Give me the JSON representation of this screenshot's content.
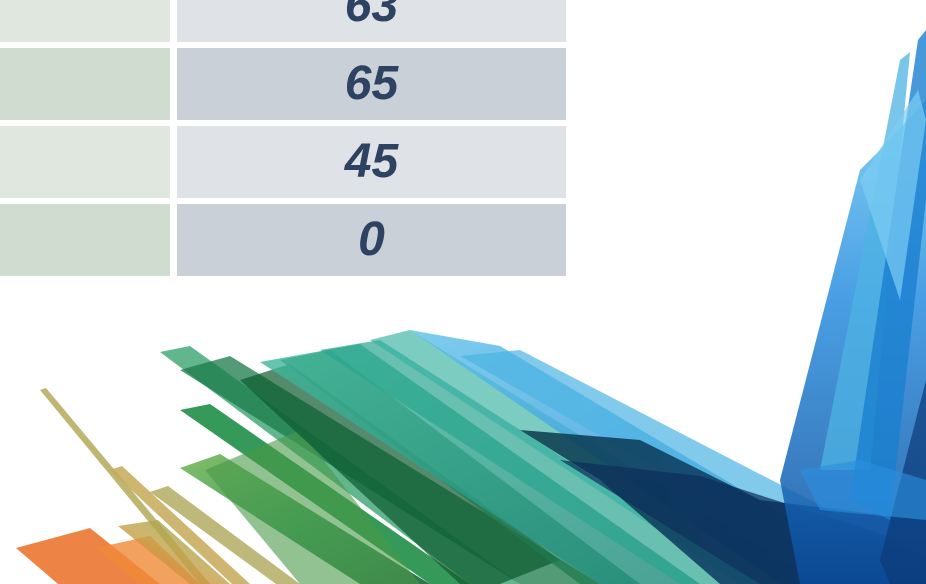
{
  "table": {
    "rows": [
      {
        "value": "63"
      },
      {
        "value": "65"
      },
      {
        "value": "45"
      },
      {
        "value": "0"
      }
    ]
  },
  "decoration": {
    "colors": {
      "orange": "#ea6f24",
      "olive": "#b7ae62",
      "green": "#1f8f47",
      "dark_green": "#0d5a2e",
      "teal": "#2aa58f",
      "light_blue": "#4db3e3",
      "blue": "#1a7fd0",
      "navy": "#0b3a78"
    }
  }
}
